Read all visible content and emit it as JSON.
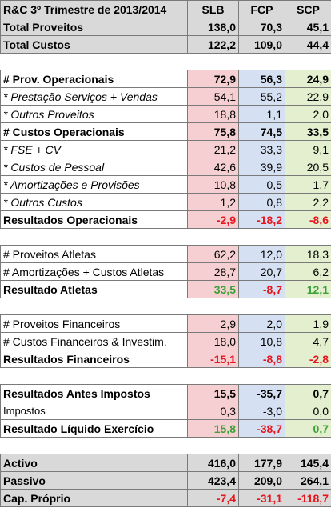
{
  "header": {
    "title": "R&C 3º Trimestre de 2013/2014",
    "col1": "SLB",
    "col2": "FCP",
    "col3": "SCP"
  },
  "rows": [
    {
      "type": "row",
      "style": "total",
      "label": "Total Proveitos",
      "v": [
        "138,0",
        "70,3",
        "45,1"
      ]
    },
    {
      "type": "row",
      "style": "total",
      "label": "Total Custos",
      "v": [
        "122,2",
        "109,0",
        "44,4"
      ]
    },
    {
      "type": "gap"
    },
    {
      "type": "row",
      "style": "bold",
      "label": "# Prov. Operacionais",
      "v": [
        "72,9",
        "56,3",
        "24,9"
      ]
    },
    {
      "type": "row",
      "style": "italic",
      "label": "* Prestação Serviços + Vendas",
      "v": [
        "54,1",
        "55,2",
        "22,9"
      ]
    },
    {
      "type": "row",
      "style": "italic",
      "label": "* Outros Proveitos",
      "v": [
        "18,8",
        "1,1",
        "2,0"
      ]
    },
    {
      "type": "row",
      "style": "bold",
      "label": "# Custos Operacionais",
      "v": [
        "75,8",
        "74,5",
        "33,5"
      ]
    },
    {
      "type": "row",
      "style": "italic",
      "label": "* FSE + CV",
      "v": [
        "21,2",
        "33,3",
        "9,1"
      ]
    },
    {
      "type": "row",
      "style": "italic",
      "label": "* Custos de Pessoal",
      "v": [
        "42,6",
        "39,9",
        "20,5"
      ]
    },
    {
      "type": "row",
      "style": "italic",
      "label": "* Amortizações e Provisões",
      "v": [
        "10,8",
        "0,5",
        "1,7"
      ]
    },
    {
      "type": "row",
      "style": "italic",
      "label": "* Outros Custos",
      "v": [
        "1,2",
        "0,8",
        "2,2"
      ]
    },
    {
      "type": "row",
      "style": "bold",
      "label": "Resultados Operacionais",
      "v": [
        "-2,9",
        "-18,2",
        "-8,6"
      ],
      "colors": [
        "neg",
        "neg",
        "neg"
      ]
    },
    {
      "type": "gap"
    },
    {
      "type": "row",
      "style": "plain",
      "label": "# Proveitos Atletas",
      "v": [
        "62,2",
        "12,0",
        "18,3"
      ]
    },
    {
      "type": "row",
      "style": "plain",
      "label": "# Amortizações + Custos Atletas",
      "v": [
        "28,7",
        "20,7",
        "6,2"
      ]
    },
    {
      "type": "row",
      "style": "bold",
      "label": "Resultado Atletas",
      "v": [
        "33,5",
        "-8,7",
        "12,1"
      ],
      "colors": [
        "pos",
        "neg",
        "pos"
      ]
    },
    {
      "type": "gap"
    },
    {
      "type": "row",
      "style": "plain",
      "label": "# Proveitos Financeiros",
      "v": [
        "2,9",
        "2,0",
        "1,9"
      ]
    },
    {
      "type": "row",
      "style": "plain",
      "label": "# Custos Financeiros & Investim.",
      "v": [
        "18,0",
        "10,8",
        "4,7"
      ]
    },
    {
      "type": "row",
      "style": "bold",
      "label": "Resultados Financeiros",
      "v": [
        "-15,1",
        "-8,8",
        "-2,8"
      ],
      "colors": [
        "neg",
        "neg",
        "neg"
      ]
    },
    {
      "type": "gap"
    },
    {
      "type": "row",
      "style": "bold",
      "label": "Resultados Antes Impostos",
      "v": [
        "15,5",
        "-35,7",
        "0,7"
      ]
    },
    {
      "type": "row",
      "style": "small",
      "label": "Impostos",
      "v": [
        "0,3",
        "-3,0",
        "0,0"
      ]
    },
    {
      "type": "row",
      "style": "bold",
      "label": "Resultado Líquido Exercício",
      "v": [
        "15,8",
        "-38,7",
        "0,7"
      ],
      "colors": [
        "pos",
        "neg",
        "pos"
      ]
    },
    {
      "type": "gap"
    },
    {
      "type": "row",
      "style": "total",
      "label": "Activo",
      "v": [
        "416,0",
        "177,9",
        "145,4"
      ]
    },
    {
      "type": "row",
      "style": "total",
      "label": "Passivo",
      "v": [
        "423,4",
        "209,0",
        "264,1"
      ]
    },
    {
      "type": "row",
      "style": "total",
      "label": "Cap. Próprio",
      "v": [
        "-7,4",
        "-31,1",
        "-118,7"
      ],
      "colors": [
        "neg",
        "neg",
        "neg"
      ]
    }
  ],
  "colors": {
    "slb": "#f5cfd2",
    "fcp": "#d5e1f2",
    "scp": "#e3efcf",
    "negative": "#e8141c",
    "positive": "#3aa235"
  }
}
